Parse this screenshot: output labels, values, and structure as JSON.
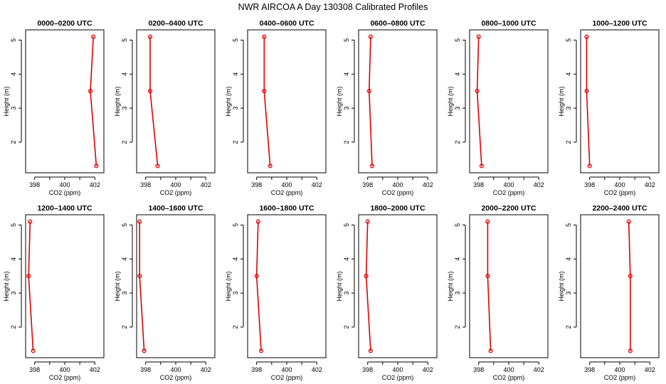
{
  "figure_title": "NWR AIRCOA A  Day 130308  Calibrated Profiles",
  "colors": {
    "series": "#dd0000",
    "axis": "#000000"
  },
  "chart_data": [
    {
      "type": "line",
      "title": "0000–0200 UTC",
      "xlabel": "CO2 (ppm)",
      "ylabel": "Height (m)",
      "xlim": [
        397.4,
        402.6
      ],
      "ylim": [
        1.1,
        5.3
      ],
      "xticks": [
        398,
        400,
        402
      ],
      "yticks": [
        2,
        3,
        4,
        5
      ],
      "grid": false,
      "series": [
        {
          "x": [
            402.1,
            401.7,
            401.9
          ],
          "y": [
            1.3,
            3.5,
            5.1
          ]
        }
      ]
    },
    {
      "type": "line",
      "title": "0200–0400 UTC",
      "xlabel": "CO2 (ppm)",
      "ylabel": "Height (m)",
      "xlim": [
        397.4,
        402.6
      ],
      "ylim": [
        1.1,
        5.3
      ],
      "xticks": [
        398,
        400,
        402
      ],
      "yticks": [
        2,
        3,
        4,
        5
      ],
      "grid": false,
      "series": [
        {
          "x": [
            398.8,
            398.3,
            398.3
          ],
          "y": [
            1.3,
            3.5,
            5.1
          ]
        }
      ]
    },
    {
      "type": "line",
      "title": "0400–0600 UTC",
      "xlabel": "CO2 (ppm)",
      "ylabel": "Height (m)",
      "xlim": [
        397.4,
        402.6
      ],
      "ylim": [
        1.1,
        5.3
      ],
      "xticks": [
        398,
        400,
        402
      ],
      "yticks": [
        2,
        3,
        4,
        5
      ],
      "grid": false,
      "series": [
        {
          "x": [
            398.9,
            398.5,
            398.5
          ],
          "y": [
            1.3,
            3.5,
            5.1
          ]
        }
      ]
    },
    {
      "type": "line",
      "title": "0600–0800 UTC",
      "xlabel": "CO2 (ppm)",
      "ylabel": "Height (m)",
      "xlim": [
        397.4,
        402.6
      ],
      "ylim": [
        1.1,
        5.3
      ],
      "xticks": [
        398,
        400,
        402
      ],
      "yticks": [
        2,
        3,
        4,
        5
      ],
      "grid": false,
      "series": [
        {
          "x": [
            398.3,
            398.1,
            398.2
          ],
          "y": [
            1.3,
            3.5,
            5.1
          ]
        }
      ]
    },
    {
      "type": "line",
      "title": "0800–1000 UTC",
      "xlabel": "CO2 (ppm)",
      "ylabel": "Height (m)",
      "xlim": [
        397.4,
        402.6
      ],
      "ylim": [
        1.1,
        5.3
      ],
      "xticks": [
        398,
        400,
        402
      ],
      "yticks": [
        2,
        3,
        4,
        5
      ],
      "grid": false,
      "series": [
        {
          "x": [
            398.2,
            397.9,
            398.0
          ],
          "y": [
            1.3,
            3.5,
            5.1
          ]
        }
      ]
    },
    {
      "type": "line",
      "title": "1000–1200 UTC",
      "xlabel": "CO2 (ppm)",
      "ylabel": "Height (m)",
      "xlim": [
        397.4,
        402.6
      ],
      "ylim": [
        1.1,
        5.3
      ],
      "xticks": [
        398,
        400,
        402
      ],
      "yticks": [
        2,
        3,
        4,
        5
      ],
      "grid": false,
      "series": [
        {
          "x": [
            398.0,
            397.8,
            397.8
          ],
          "y": [
            1.3,
            3.5,
            5.1
          ]
        }
      ]
    },
    {
      "type": "line",
      "title": "1200–1400 UTC",
      "xlabel": "CO2 (ppm)",
      "ylabel": "Height (m)",
      "xlim": [
        397.4,
        402.6
      ],
      "ylim": [
        1.1,
        5.3
      ],
      "xticks": [
        398,
        400,
        402
      ],
      "yticks": [
        2,
        3,
        4,
        5
      ],
      "grid": false,
      "series": [
        {
          "x": [
            397.9,
            397.6,
            397.7
          ],
          "y": [
            1.3,
            3.5,
            5.1
          ]
        }
      ]
    },
    {
      "type": "line",
      "title": "1400–1600 UTC",
      "xlabel": "CO2 (ppm)",
      "ylabel": "Height (m)",
      "xlim": [
        397.4,
        402.6
      ],
      "ylim": [
        1.1,
        5.3
      ],
      "xticks": [
        398,
        400,
        402
      ],
      "yticks": [
        2,
        3,
        4,
        5
      ],
      "grid": false,
      "series": [
        {
          "x": [
            397.9,
            397.6,
            397.6
          ],
          "y": [
            1.3,
            3.5,
            5.1
          ]
        }
      ]
    },
    {
      "type": "line",
      "title": "1600–1800 UTC",
      "xlabel": "CO2 (ppm)",
      "ylabel": "Height (m)",
      "xlim": [
        397.4,
        402.6
      ],
      "ylim": [
        1.1,
        5.3
      ],
      "xticks": [
        398,
        400,
        402
      ],
      "yticks": [
        2,
        3,
        4,
        5
      ],
      "grid": false,
      "series": [
        {
          "x": [
            398.3,
            398.0,
            398.1
          ],
          "y": [
            1.3,
            3.5,
            5.1
          ]
        }
      ]
    },
    {
      "type": "line",
      "title": "1800–2000 UTC",
      "xlabel": "CO2 (ppm)",
      "ylabel": "Height (m)",
      "xlim": [
        397.4,
        402.6
      ],
      "ylim": [
        1.1,
        5.3
      ],
      "xticks": [
        398,
        400,
        402
      ],
      "yticks": [
        2,
        3,
        4,
        5
      ],
      "grid": false,
      "series": [
        {
          "x": [
            398.2,
            397.9,
            398.0
          ],
          "y": [
            1.3,
            3.5,
            5.1
          ]
        }
      ]
    },
    {
      "type": "line",
      "title": "2000–2200 UTC",
      "xlabel": "CO2 (ppm)",
      "ylabel": "Height (m)",
      "xlim": [
        397.4,
        402.6
      ],
      "ylim": [
        1.1,
        5.3
      ],
      "xticks": [
        398,
        400,
        402
      ],
      "yticks": [
        2,
        3,
        4,
        5
      ],
      "grid": false,
      "series": [
        {
          "x": [
            398.8,
            398.6,
            398.6
          ],
          "y": [
            1.3,
            3.5,
            5.1
          ]
        }
      ]
    },
    {
      "type": "line",
      "title": "2200–2400 UTC",
      "xlabel": "CO2 (ppm)",
      "ylabel": "Height (m)",
      "xlim": [
        397.4,
        402.6
      ],
      "ylim": [
        1.1,
        5.3
      ],
      "xticks": [
        398,
        400,
        402
      ],
      "yticks": [
        2,
        3,
        4,
        5
      ],
      "grid": false,
      "series": [
        {
          "x": [
            400.7,
            400.7,
            400.6
          ],
          "y": [
            1.3,
            3.5,
            5.1
          ]
        }
      ]
    }
  ]
}
